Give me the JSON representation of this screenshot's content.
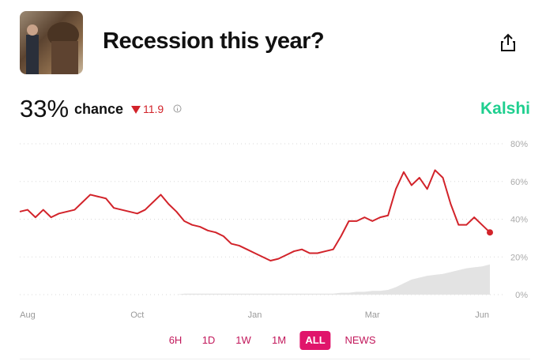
{
  "header": {
    "title": "Recession this year?",
    "probability": "33%",
    "caption": "chance",
    "change": "11.9",
    "brand": "Kalshi"
  },
  "buttons": [
    "6H",
    "1D",
    "1W",
    "1M",
    "ALL",
    "NEWS"
  ],
  "active_button": 4,
  "chart_data": {
    "type": "line",
    "categories": [
      null,
      "Aug",
      null,
      null,
      null,
      null,
      null,
      null,
      null,
      null,
      null,
      null,
      null,
      null,
      null,
      "Oct",
      null,
      null,
      null,
      null,
      null,
      null,
      null,
      null,
      null,
      null,
      null,
      null,
      null,
      null,
      "Jan",
      null,
      null,
      null,
      null,
      null,
      null,
      null,
      null,
      null,
      null,
      null,
      null,
      null,
      null,
      "Mar",
      null,
      null,
      null,
      null,
      null,
      null,
      null,
      null,
      null,
      null,
      null,
      null,
      null,
      "Jun",
      null
    ],
    "series": [
      {
        "color": "#d2232a",
        "values": [
          44,
          45,
          41,
          45,
          41,
          43,
          44,
          45,
          49,
          53,
          52,
          51,
          46,
          45,
          44,
          43,
          45,
          49,
          53,
          48,
          44,
          39,
          37,
          36,
          34,
          33,
          31,
          27,
          26,
          24,
          22,
          20,
          18,
          19,
          21,
          23,
          24,
          22,
          22,
          23,
          24,
          31,
          39,
          39,
          41,
          39,
          41,
          42,
          56,
          65,
          58,
          62,
          56,
          66,
          62,
          48,
          37,
          37,
          41,
          37,
          33
        ]
      },
      {
        "color": "#e3e3e3",
        "values": [
          0,
          0,
          0,
          0,
          0,
          0,
          0,
          0,
          0,
          0,
          0,
          0,
          0,
          0,
          0,
          0,
          0,
          0,
          0,
          0,
          0,
          0.5,
          0.5,
          0.5,
          0.5,
          0.5,
          0.5,
          0.5,
          0.5,
          0.5,
          0.5,
          0.5,
          0.5,
          0.5,
          0.5,
          0.5,
          0.5,
          0.5,
          0.5,
          0.5,
          0.5,
          1,
          1,
          1.5,
          1.5,
          2,
          2,
          2.5,
          4,
          6,
          8,
          9,
          10,
          10.5,
          11,
          12,
          13,
          14,
          14.5,
          15,
          16
        ]
      }
    ],
    "ylim": [
      0,
      80
    ],
    "yticks": [
      {
        "value": 0,
        "label": "0%"
      },
      {
        "value": 20,
        "label": "20%"
      },
      {
        "value": 40,
        "label": "40%"
      },
      {
        "value": 60,
        "label": "60%"
      },
      {
        "value": 80,
        "label": "80%"
      }
    ],
    "grid": true
  }
}
